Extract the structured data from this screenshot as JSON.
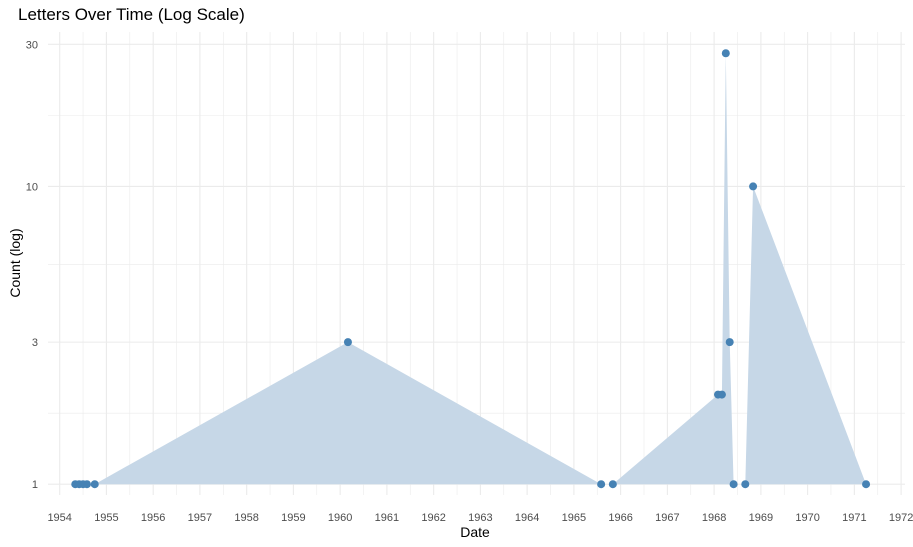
{
  "chart_data": {
    "type": "area",
    "title": "Letters Over Time (Log Scale)",
    "xlabel": "Date",
    "ylabel": "Count (log)",
    "y_scale": "log",
    "xlim": [
      "1953-10-01",
      "1972-02-01"
    ],
    "ylim": [
      0.92,
      33
    ],
    "x_ticks": [
      "1954",
      "1955",
      "1956",
      "1957",
      "1958",
      "1959",
      "1960",
      "1961",
      "1962",
      "1963",
      "1964",
      "1965",
      "1966",
      "1967",
      "1968",
      "1969",
      "1970",
      "1971",
      "1972"
    ],
    "y_ticks": [
      1,
      3,
      10,
      30
    ],
    "y_tick_labels": [
      "1",
      "3",
      "10",
      "30"
    ],
    "grid": true,
    "colors": {
      "fill": "#c6d7e7",
      "point": "#4682b4",
      "grid": "#ebebeb"
    },
    "series": [
      {
        "points": [
          {
            "x": "1954-05-01",
            "y": 1
          },
          {
            "x": "1954-06-01",
            "y": 1
          },
          {
            "x": "1954-07-01",
            "y": 1
          },
          {
            "x": "1954-08-01",
            "y": 1
          },
          {
            "x": "1954-10-01",
            "y": 1
          },
          {
            "x": "1960-03-01",
            "y": 3
          },
          {
            "x": "1965-08-01",
            "y": 1
          },
          {
            "x": "1965-11-01",
            "y": 1
          },
          {
            "x": "1968-02-01",
            "y": 2
          },
          {
            "x": "1968-03-01",
            "y": 2
          },
          {
            "x": "1968-04-01",
            "y": 28
          },
          {
            "x": "1968-05-01",
            "y": 3
          },
          {
            "x": "1968-06-01",
            "y": 1
          },
          {
            "x": "1968-09-01",
            "y": 1
          },
          {
            "x": "1968-11-01",
            "y": 10
          },
          {
            "x": "1971-04-01",
            "y": 1
          }
        ]
      }
    ]
  }
}
